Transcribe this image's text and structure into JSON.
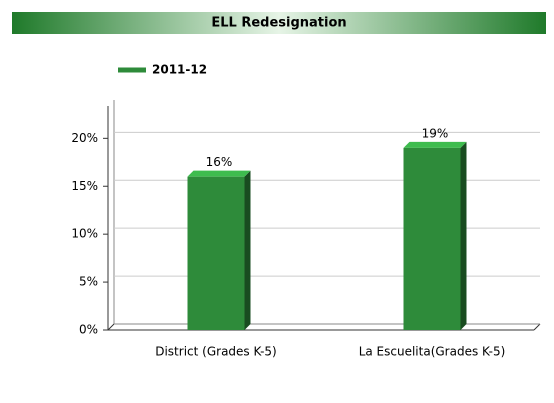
{
  "chart_data": {
    "type": "bar",
    "title": "ELL Redesignation",
    "categories": [
      "District (Grades K-5)",
      "La Escuelita(Grades K-5)"
    ],
    "series": [
      {
        "name": "2011-12",
        "color": "#2e8b3a",
        "values": [
          16,
          19
        ],
        "value_labels": [
          "16%",
          "19%"
        ]
      }
    ],
    "ylim": [
      0,
      24
    ],
    "yticks": [
      {
        "value": 0,
        "label": "0%"
      },
      {
        "value": 5,
        "label": "5%"
      },
      {
        "value": 10,
        "label": "10%"
      },
      {
        "value": 15,
        "label": "15%"
      },
      {
        "value": 20,
        "label": "20%"
      }
    ],
    "grid": true,
    "legend": "top"
  }
}
